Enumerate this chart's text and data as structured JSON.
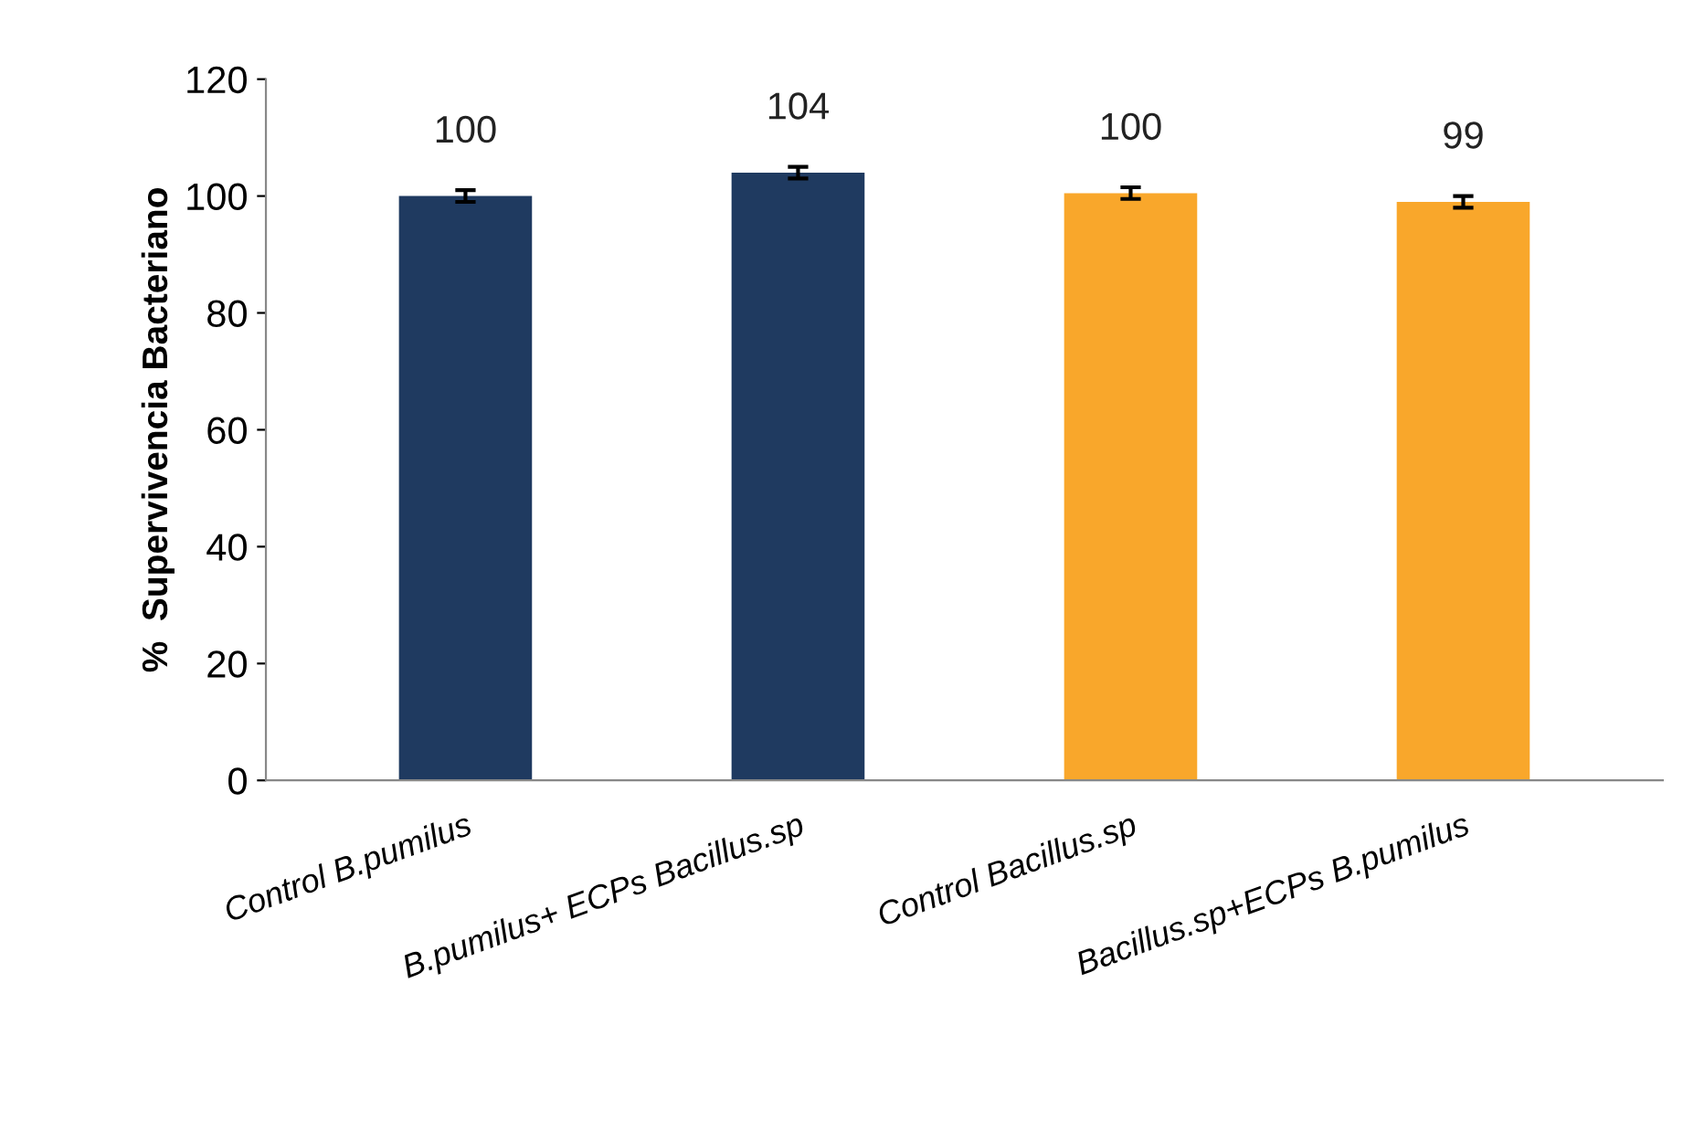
{
  "chart_data": {
    "type": "bar",
    "ylabel": "%  Supervivencia Bacteriano",
    "categories": [
      "Control B.pumilus",
      "B.pumilus+ ECPs Bacillus.sp",
      "Control Bacillus.sp",
      "Bacillus.sp+ECPs B.pumilus"
    ],
    "values": [
      100,
      104,
      100.5,
      99
    ],
    "colors": [
      "#1f3a60",
      "#1f3a60",
      "#f9a72b",
      "#f9a72b"
    ],
    "errors": [
      1,
      1,
      1,
      1
    ],
    "value_labels": [
      "100",
      "104",
      "100",
      "99"
    ],
    "ylim": [
      0,
      120
    ],
    "yticks": [
      0,
      20,
      40,
      60,
      80,
      100,
      120
    ],
    "grid": false
  }
}
